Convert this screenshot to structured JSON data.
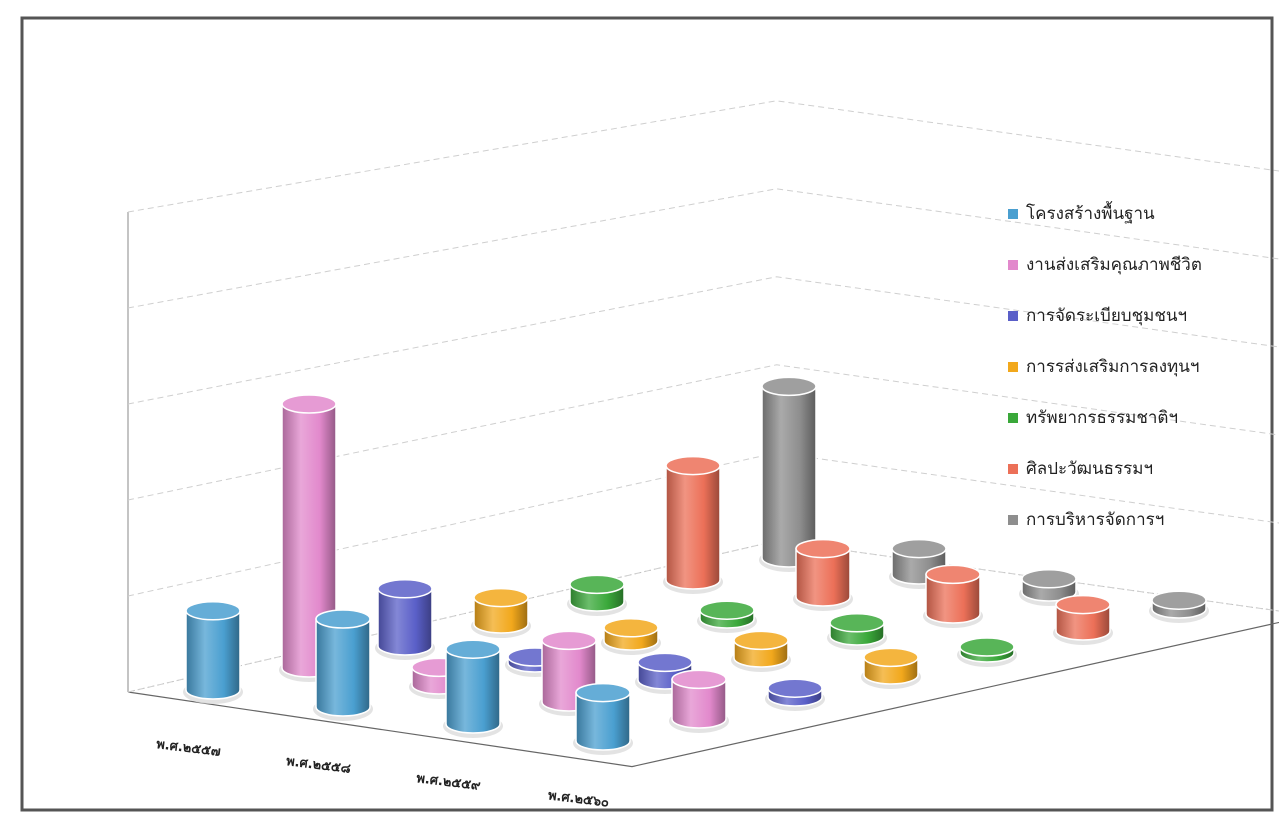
{
  "chart_data": {
    "type": "bar",
    "style": "3d-cylinder",
    "categories": [
      "พ.ศ.๒๕๕๗",
      "พ.ศ.๒๕๕๘",
      "พ.ศ.๒๕๕๙",
      "พ.ศ.๒๕๖๐"
    ],
    "ylim": [
      0,
      1000
    ],
    "yticks": [
      "๐",
      "๒๐๐",
      "๔๐๐",
      "๖๐๐",
      "๘๐๐",
      "๑,๐๐๐"
    ],
    "grid": true,
    "legend_position": "right",
    "series": [
      {
        "name": "โครงสร้างพื้นฐาน",
        "color": "#4a9fd0",
        "values": [
          180,
          200,
          170,
          110
        ]
      },
      {
        "name": "งานส่งเสริมคุณภาพชีวิต",
        "color": "#e289cc",
        "values": [
          600,
          40,
          140,
          90
        ]
      },
      {
        "name": "การจัดระเบียบชุมชนฯ",
        "color": "#5a5fc8",
        "values": [
          130,
          10,
          40,
          20
        ]
      },
      {
        "name": "การรส่งเสริมการลงทุนฯ",
        "color": "#f2a81c",
        "values": [
          60,
          30,
          40,
          40
        ]
      },
      {
        "name": "ทรัพยากรธรรมชาติฯ",
        "color": "#3aa83a",
        "values": [
          40,
          20,
          30,
          10
        ]
      },
      {
        "name": "ศิลปะวัฒนธรรมฯ",
        "color": "#ec7058",
        "values": [
          260,
          110,
          90,
          60
        ]
      },
      {
        "name": "การบริหารจัดการฯ",
        "color": "#8e8e8e",
        "values": [
          390,
          60,
          30,
          20
        ]
      }
    ]
  }
}
